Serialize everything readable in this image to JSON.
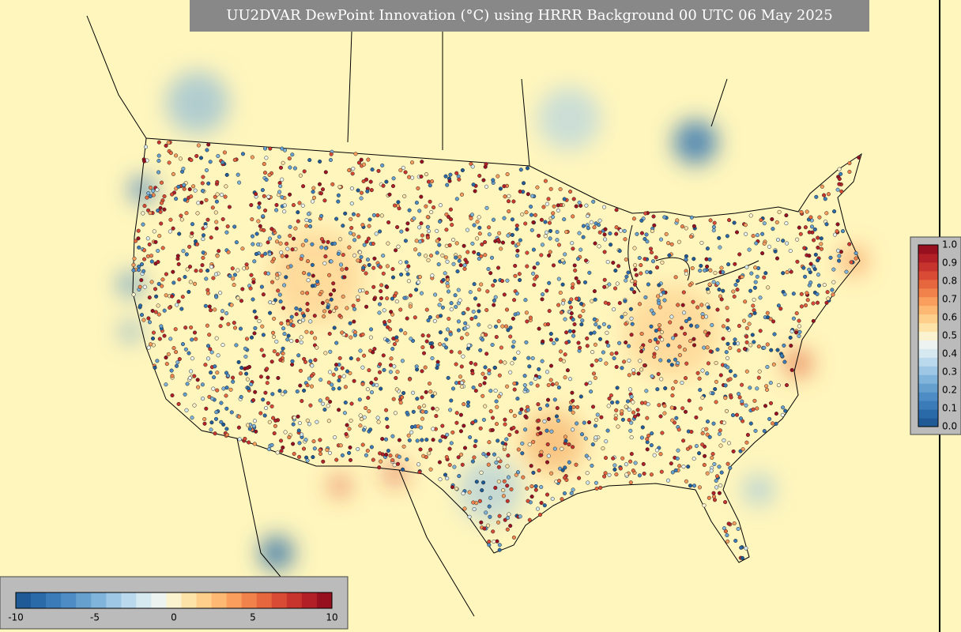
{
  "title": "UU2DVAR DewPoint Innovation (°C) using HRRR Background 00 UTC 06 May 2025",
  "colorbars": [
    {
      "ticks": [
        "-10",
        "-5",
        "0",
        "5",
        "10"
      ]
    },
    {
      "ticks": [
        "1.0",
        "0.9",
        "0.8",
        "0.7",
        "0.6",
        "0.5",
        "0.4",
        "0.3",
        "0.2",
        "0.1",
        "0.0"
      ]
    }
  ]
}
